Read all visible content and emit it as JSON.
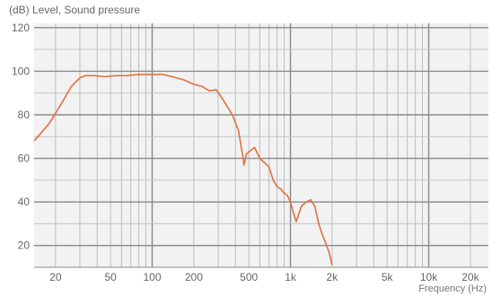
{
  "chart_data": {
    "type": "line",
    "xlabel": "Frequency (Hz)",
    "ylabel": "(dB) Level, Sound pressure",
    "x_scale": "log",
    "xlim": [
      14,
      27000
    ],
    "ylim": [
      10,
      122
    ],
    "grid": true,
    "x_ticks": [
      {
        "value": 20,
        "label": "20"
      },
      {
        "value": 50,
        "label": "50"
      },
      {
        "value": 100,
        "label": "100"
      },
      {
        "value": 200,
        "label": "200"
      },
      {
        "value": 500,
        "label": "500"
      },
      {
        "value": 1000,
        "label": "1k"
      },
      {
        "value": 2000,
        "label": "2k"
      },
      {
        "value": 5000,
        "label": "5k"
      },
      {
        "value": 10000,
        "label": "10k"
      },
      {
        "value": 20000,
        "label": "20k"
      }
    ],
    "y_ticks": [
      {
        "value": 20,
        "label": "20"
      },
      {
        "value": 40,
        "label": "40"
      },
      {
        "value": 60,
        "label": "60"
      },
      {
        "value": 80,
        "label": "80"
      },
      {
        "value": 100,
        "label": "100"
      },
      {
        "value": 120,
        "label": "120"
      }
    ],
    "line_color": "#e07040",
    "x": [
      14,
      18,
      22,
      26,
      30,
      33,
      38,
      45,
      55,
      65,
      80,
      100,
      120,
      140,
      170,
      200,
      230,
      260,
      290,
      310,
      340,
      380,
      420,
      455,
      460,
      465,
      470,
      480,
      500,
      550,
      600,
      650,
      700,
      750,
      800,
      850,
      900,
      950,
      1000,
      1050,
      1100,
      1200,
      1300,
      1400,
      1500,
      1600,
      1700,
      1800,
      1850,
      1900,
      2000
    ],
    "y": [
      68,
      76,
      85,
      93,
      97,
      98,
      98,
      97.5,
      98,
      98,
      98.5,
      98.5,
      98.5,
      97.5,
      96,
      94,
      93,
      91,
      91.5,
      89,
      85,
      80,
      73,
      60,
      57,
      58,
      59,
      62,
      63,
      65,
      60,
      58,
      56,
      50,
      47,
      46,
      44,
      43,
      40,
      35,
      31,
      38,
      40,
      41,
      38,
      30,
      25,
      21,
      19,
      17,
      11
    ]
  }
}
